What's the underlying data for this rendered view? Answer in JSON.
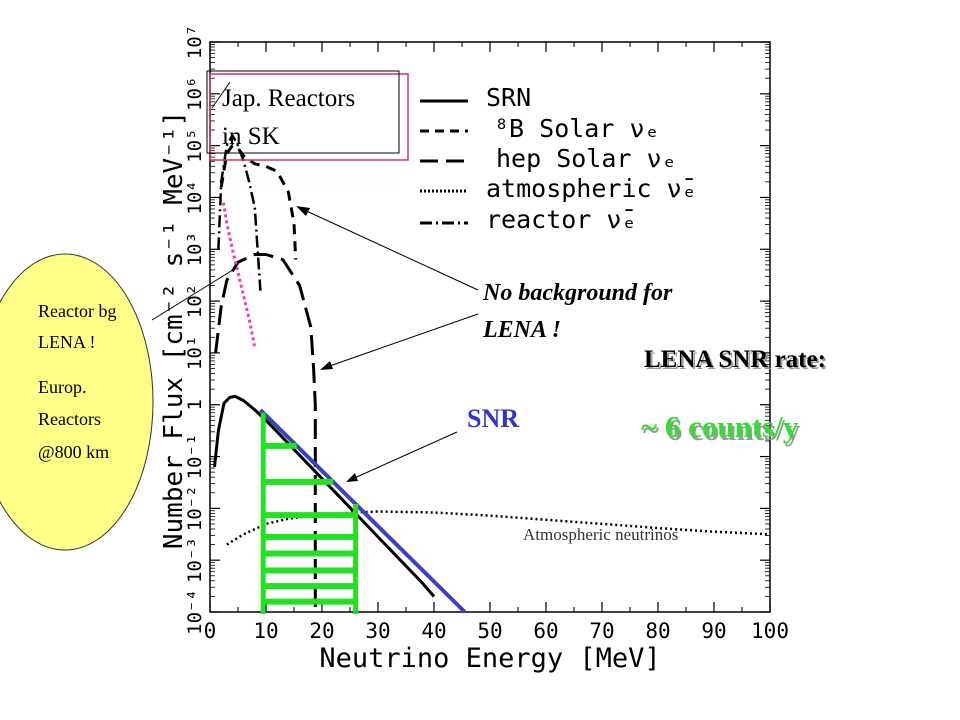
{
  "chart_data": {
    "type": "line",
    "xlabel": "Neutrino Energy [MeV]",
    "ylabel": "Number Flux [cm⁻² s⁻¹ MeV⁻¹]",
    "xlim": [
      0,
      100
    ],
    "ylim_log10": [
      -4,
      7
    ],
    "y_scale": "log",
    "x_ticks": [
      "0",
      "10",
      "20",
      "30",
      "40",
      "50",
      "60",
      "70",
      "80",
      "90",
      "100"
    ],
    "y_ticks": [
      "10⁻⁴",
      "10⁻³",
      "10⁻²",
      "10⁻¹",
      "1",
      "10¹",
      "10²",
      "10³",
      "10⁴",
      "10⁵",
      "10⁶",
      "10⁷"
    ],
    "legend": [
      {
        "label": "SRN",
        "style": "solid"
      },
      {
        "label": "⁸B Solar νₑ",
        "style": "dash"
      },
      {
        "label": "hep Solar νₑ",
        "style": "longdash"
      },
      {
        "label": "atmospheric ν̄ₑ",
        "style": "dot"
      },
      {
        "label": "reactor ν̄ₑ",
        "style": "dashdot"
      }
    ],
    "series": [
      {
        "style": "solid",
        "x": [
          0.8,
          1.5,
          2.5,
          3.5,
          4.5,
          6,
          8,
          10,
          14,
          18,
          22,
          26,
          30,
          34,
          38,
          40
        ],
        "y": [
          -1.2,
          -0.5,
          0.03,
          0.14,
          0.16,
          0.08,
          -0.1,
          -0.3,
          -0.75,
          -1.2,
          -1.65,
          -2.1,
          -2.55,
          -3.0,
          -3.45,
          -3.7
        ]
      },
      {
        "style": "dash",
        "x": [
          2,
          3,
          4,
          5,
          6,
          8,
          10,
          12,
          14,
          15,
          15.3
        ],
        "y": [
          4.2,
          4.85,
          5.0,
          4.95,
          4.8,
          4.65,
          4.6,
          4.5,
          4.1,
          3.5,
          2.8
        ]
      },
      {
        "style": "longdash",
        "x": [
          1,
          2,
          3,
          5,
          8,
          10,
          13,
          16,
          18,
          18.5,
          18.8,
          18.8
        ],
        "y": [
          1.0,
          1.9,
          2.4,
          2.75,
          2.9,
          2.9,
          2.8,
          2.3,
          1.5,
          0.7,
          0.0,
          -4.0
        ]
      },
      {
        "style": "dot",
        "x": [
          3,
          6,
          10,
          14,
          20,
          26,
          30,
          40,
          50,
          60,
          70,
          80,
          90,
          100
        ],
        "y": [
          -2.7,
          -2.5,
          -2.3,
          -2.2,
          -2.12,
          -2.08,
          -2.06,
          -2.08,
          -2.14,
          -2.22,
          -2.3,
          -2.38,
          -2.45,
          -2.5
        ]
      },
      {
        "style": "dashdot",
        "x": [
          1.5,
          2,
          3,
          4,
          5,
          6,
          7,
          8,
          8.5,
          9
        ],
        "y": [
          3.0,
          4.3,
          5.0,
          5.2,
          5.0,
          4.7,
          4.3,
          3.8,
          3.0,
          2.2
        ]
      },
      {
        "style": "reactor-bg",
        "x": [
          2.4,
          3,
          4,
          5,
          6,
          7,
          8
        ],
        "y": [
          3.9,
          3.5,
          3.0,
          2.55,
          2.1,
          1.65,
          1.1
        ]
      },
      {
        "style": "lena-snr",
        "x": [
          9,
          45.5
        ],
        "y": [
          -0.1,
          -4.0
        ]
      }
    ],
    "snr_window": {
      "x_min": 9.5,
      "x_max": 26
    },
    "background_marker_x": 18.5,
    "annotations": [
      {
        "text": "Jap. Reactors"
      },
      {
        "text": "in SK"
      },
      {
        "text": "No background for"
      },
      {
        "text": "LENA !"
      },
      {
        "text": "SNR"
      },
      {
        "text": "Atmospheric neutrinos"
      }
    ]
  },
  "colors": {
    "snr_fit": "#3b40c4",
    "snr_bars": "#22e022",
    "reactor_bg": "#ff3aa0",
    "bubble": "#ffff88",
    "box_border": "#cc3366",
    "snr_label": "#3333cc"
  },
  "bubble": {
    "line1": "Reactor bg",
    "line2": "LENA !",
    "line3": "Europ.",
    "line4": "Reactors",
    "line5": "@800 km"
  },
  "lena_rate": {
    "title": "LENA SNR rate:",
    "value": "~ 6 counts/y"
  }
}
